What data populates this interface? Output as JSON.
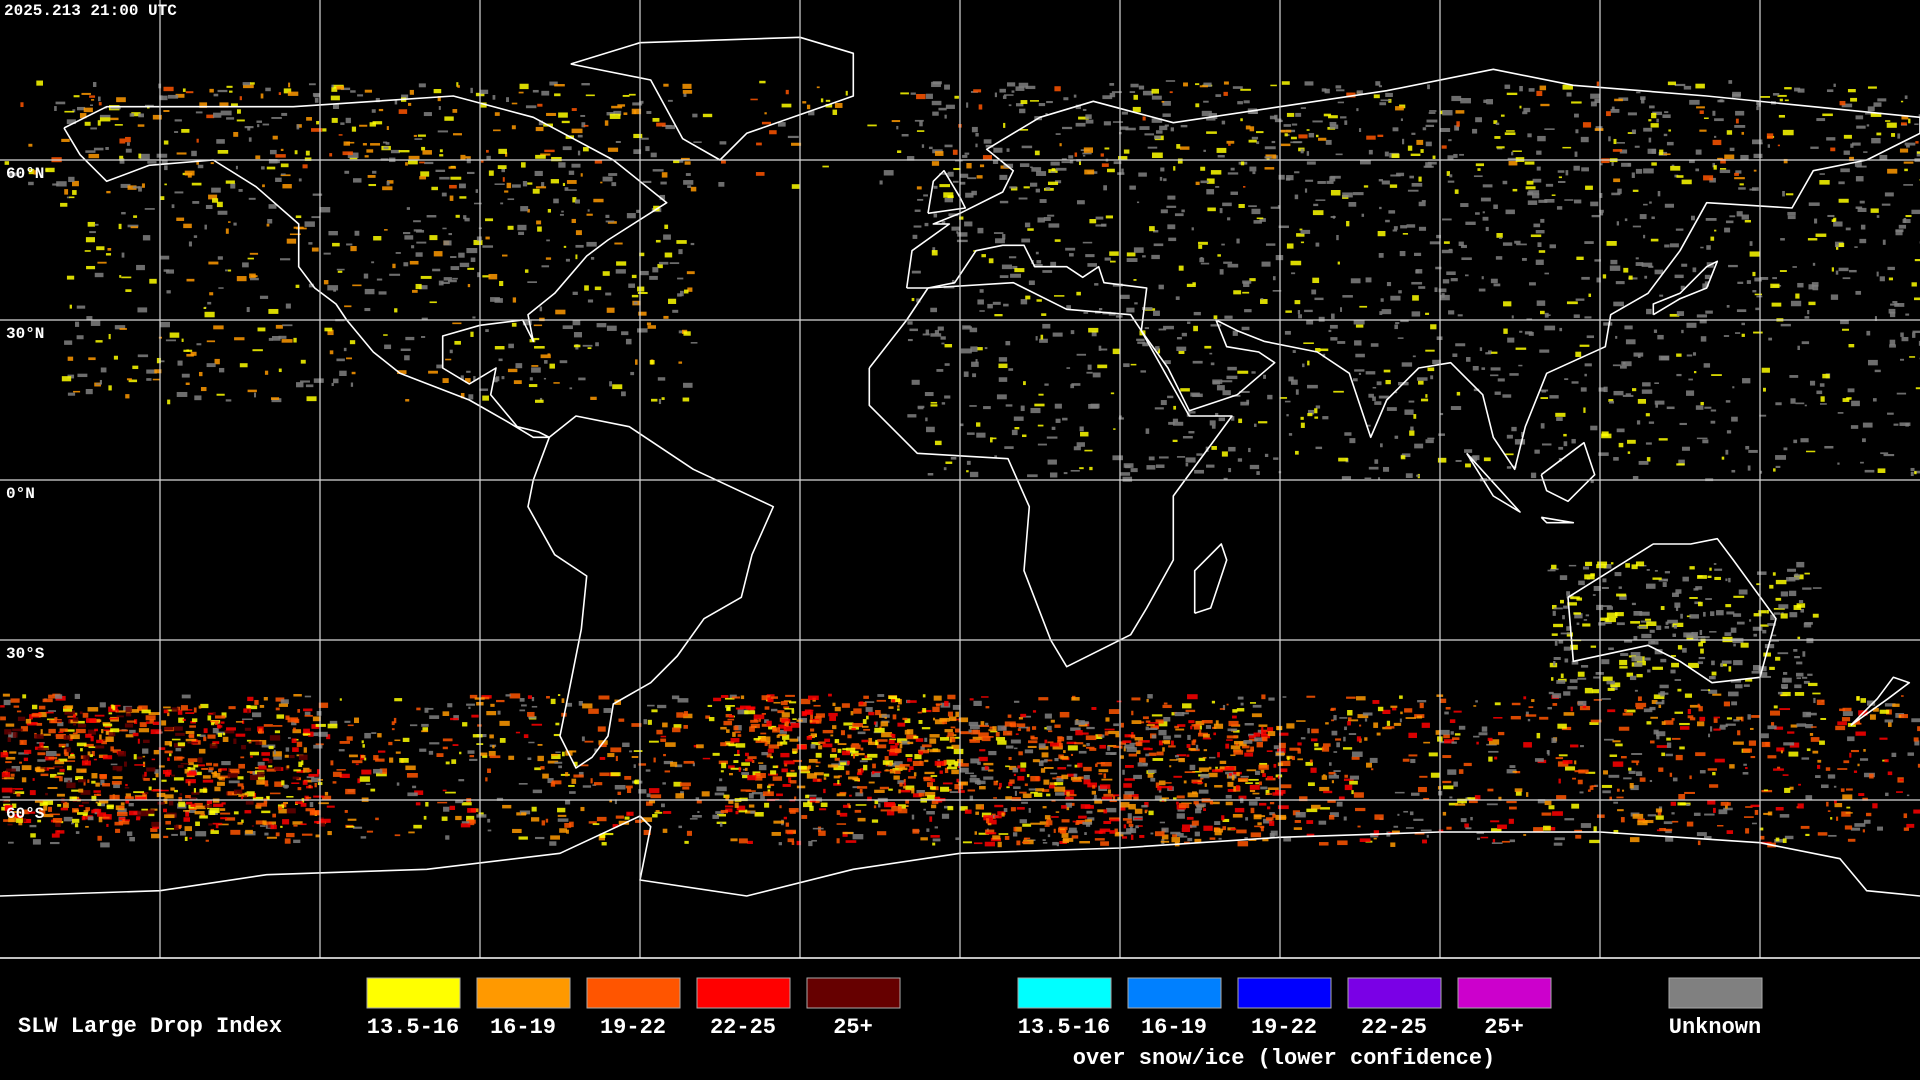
{
  "header": {
    "timestamp": "2025.213 21:00 UTC"
  },
  "grid": {
    "lat_labels": [
      "60°N",
      "30°N",
      "0°N",
      "30°S",
      "60°S"
    ]
  },
  "legend": {
    "title": "SLW Large Drop Index",
    "groups": [
      {
        "items": [
          {
            "label": "13.5-16",
            "color": "#ffff00"
          },
          {
            "label": "16-19",
            "color": "#ff9900"
          },
          {
            "label": "19-22",
            "color": "#ff5500"
          },
          {
            "label": "22-25",
            "color": "#ff0000"
          },
          {
            "label": "25+",
            "color": "#660000"
          }
        ]
      },
      {
        "items": [
          {
            "label": "13.5-16",
            "color": "#00ffff"
          },
          {
            "label": "16-19",
            "color": "#0080ff"
          },
          {
            "label": "19-22",
            "color": "#0000ff"
          },
          {
            "label": "22-25",
            "color": "#7a00e6"
          },
          {
            "label": "25+",
            "color": "#cc00cc"
          }
        ],
        "note": "over snow/ice (lower confidence)"
      },
      {
        "items": [
          {
            "label": "Unknown",
            "color": "#808080"
          }
        ]
      }
    ]
  }
}
